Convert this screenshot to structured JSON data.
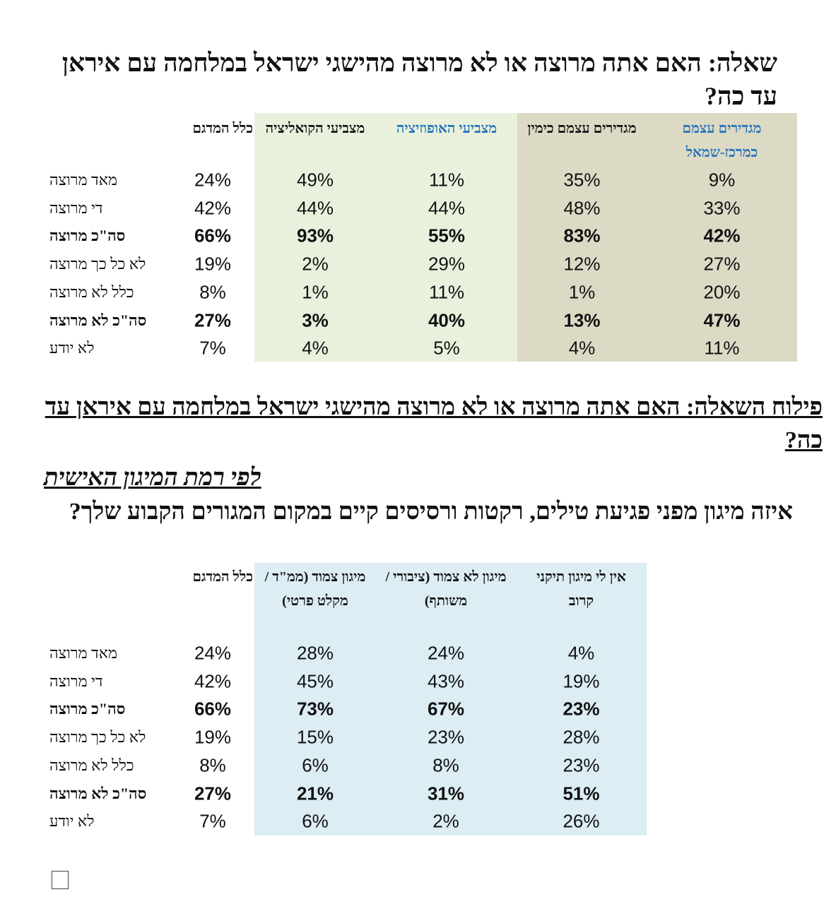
{
  "question": {
    "title": "שאלה: האם אתה מרוצה או לא מרוצה מהישגי ישראל במלחמה עם איראן עד כה?"
  },
  "table1": {
    "headers": [
      "כלל המדגם",
      "מצביעי הקואליציה",
      "מצביעי האופוזיציה",
      "מגדירים עצמם כימין",
      "מגדירים עצמם כמרכז-שמאל"
    ],
    "rows": [
      {
        "label": "מאד מרוצה",
        "values": [
          "24%",
          "49%",
          "11%",
          "35%",
          "9%"
        ]
      },
      {
        "label": "די מרוצה",
        "values": [
          "42%",
          "44%",
          "44%",
          "48%",
          "33%"
        ]
      },
      {
        "label": "סה\"כ מרוצה",
        "bold": true,
        "values": [
          "66%",
          "93%",
          "55%",
          "83%",
          "42%"
        ]
      },
      {
        "label": "לא כל כך מרוצה",
        "values": [
          "19%",
          "2%",
          "29%",
          "12%",
          "27%"
        ]
      },
      {
        "label": "כלל לא מרוצה",
        "values": [
          "8%",
          "1%",
          "11%",
          "1%",
          "20%"
        ]
      },
      {
        "label": "סה\"כ לא מרוצה",
        "bold": true,
        "values": [
          "27%",
          "3%",
          "40%",
          "13%",
          "47%"
        ]
      },
      {
        "label": "לא יודע",
        "values": [
          "7%",
          "4%",
          "5%",
          "4%",
          "11%"
        ]
      }
    ]
  },
  "breakdown": {
    "title": "פילוח השאלה: האם אתה מרוצה או לא מרוצה מהישגי ישראל במלחמה עם איראן עד כה?",
    "subtitle": "לפי רמת המיגון האישית",
    "question": "איזה מיגון מפני פגיעת טילים, רקטות ורסיסים קיים במקום המגורים הקבוע שלך?"
  },
  "table2": {
    "headers": [
      "כלל המדגם",
      "מיגון צמוד (ממ\"ד / מקלט פרטי)",
      "מיגון לא צמוד (ציבורי / משותף)",
      "אין לי מיגון תיקני קרוב"
    ],
    "rows": [
      {
        "label": "מאד מרוצה",
        "values": [
          "24%",
          "28%",
          "24%",
          "4%"
        ]
      },
      {
        "label": "די מרוצה",
        "values": [
          "42%",
          "45%",
          "43%",
          "19%"
        ]
      },
      {
        "label": "סה\"כ מרוצה",
        "bold": true,
        "values": [
          "66%",
          "73%",
          "67%",
          "23%"
        ]
      },
      {
        "label": "לא כל כך מרוצה",
        "values": [
          "19%",
          "15%",
          "23%",
          "28%"
        ]
      },
      {
        "label": "כלל לא מרוצה",
        "values": [
          "8%",
          "6%",
          "8%",
          "23%"
        ]
      },
      {
        "label": "סה\"כ לא מרוצה",
        "bold": true,
        "values": [
          "27%",
          "21%",
          "31%",
          "51%"
        ]
      },
      {
        "label": "לא יודע",
        "values": [
          "7%",
          "6%",
          "2%",
          "26%"
        ]
      }
    ]
  }
}
